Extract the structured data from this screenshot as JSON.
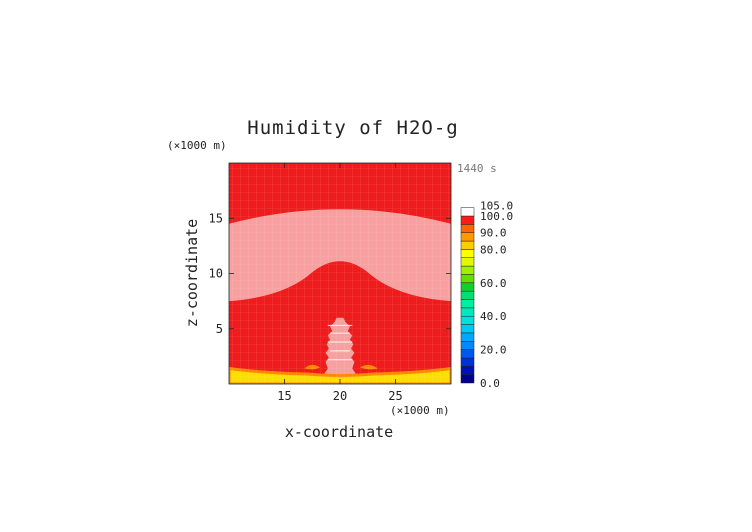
{
  "chart_data": {
    "type": "heatmap",
    "title": "Humidity of H2O-g",
    "xlabel": "x-coordinate",
    "ylabel": "z-coordinate",
    "x_unit": "(×1000 m)",
    "y_unit": "(×1000 m)",
    "time_label": "1440 s",
    "xlim": [
      10,
      30
    ],
    "ylim": [
      0,
      20
    ],
    "x_ticks": [
      "15",
      "20",
      "25"
    ],
    "x_tick_values": [
      15,
      20,
      25
    ],
    "y_ticks": [
      "5",
      "10",
      "15"
    ],
    "y_tick_values": [
      5,
      10,
      15
    ],
    "colorbar": {
      "labels": [
        "0.0",
        "20.0",
        "40.0",
        "60.0",
        "80.0",
        "90.0",
        "100.0",
        "105.0"
      ],
      "label_values": [
        0,
        20,
        40,
        60,
        80,
        90,
        100,
        105
      ],
      "levels": [
        {
          "min": 0,
          "max": 5,
          "color": "#00008b"
        },
        {
          "min": 5,
          "max": 10,
          "color": "#0010b8"
        },
        {
          "min": 10,
          "max": 15,
          "color": "#0030dc"
        },
        {
          "min": 15,
          "max": 20,
          "color": "#0058f0"
        },
        {
          "min": 20,
          "max": 25,
          "color": "#0088ff"
        },
        {
          "min": 25,
          "max": 30,
          "color": "#00a8ff"
        },
        {
          "min": 30,
          "max": 35,
          "color": "#00c8f0"
        },
        {
          "min": 35,
          "max": 40,
          "color": "#00e0e0"
        },
        {
          "min": 40,
          "max": 45,
          "color": "#00e8c0"
        },
        {
          "min": 45,
          "max": 50,
          "color": "#00f0a0"
        },
        {
          "min": 50,
          "max": 55,
          "color": "#00e070"
        },
        {
          "min": 55,
          "max": 60,
          "color": "#10d030"
        },
        {
          "min": 60,
          "max": 65,
          "color": "#60e000"
        },
        {
          "min": 65,
          "max": 70,
          "color": "#a0f000"
        },
        {
          "min": 70,
          "max": 75,
          "color": "#e0f800"
        },
        {
          "min": 75,
          "max": 80,
          "color": "#ffff00"
        },
        {
          "min": 80,
          "max": 85,
          "color": "#ffcc00"
        },
        {
          "min": 85,
          "max": 90,
          "color": "#ff9900"
        },
        {
          "min": 90,
          "max": 95,
          "color": "#ff6600"
        },
        {
          "min": 95,
          "max": 100,
          "color": "#ff1a1a"
        },
        {
          "min": 100,
          "max": 105,
          "color": "#ffffff"
        }
      ]
    },
    "regions": [
      {
        "name": "background",
        "humidity": 97,
        "color": "#ee1c1c"
      },
      {
        "name": "upper-moist-band",
        "humidity": 100,
        "color": "#f8a0a0",
        "z_range": [
          8,
          15.5
        ]
      },
      {
        "name": "cloud-column",
        "humidity": 100,
        "color": "#f8a0a0",
        "x_range": [
          18.4,
          21.6
        ],
        "z_range": [
          0.4,
          6
        ]
      },
      {
        "name": "surface-layer",
        "humidity": 80,
        "color": "#ffdd00",
        "z_range": [
          0,
          1.2
        ]
      },
      {
        "name": "cloud-base-patches",
        "humidity": 88,
        "color": "#ff8800"
      }
    ]
  }
}
